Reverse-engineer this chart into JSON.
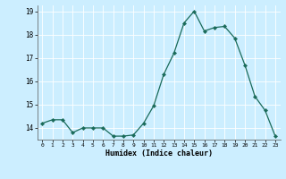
{
  "x": [
    0,
    1,
    2,
    3,
    4,
    5,
    6,
    7,
    8,
    9,
    10,
    11,
    12,
    13,
    14,
    15,
    16,
    17,
    18,
    19,
    20,
    21,
    22,
    23
  ],
  "y": [
    14.2,
    14.35,
    14.35,
    13.8,
    14.0,
    14.0,
    14.0,
    13.65,
    13.65,
    13.7,
    14.2,
    14.95,
    16.3,
    17.2,
    18.5,
    19.0,
    18.15,
    18.3,
    18.35,
    17.85,
    16.7,
    15.35,
    14.75,
    13.65
  ],
  "ylim": [
    13.5,
    19.25
  ],
  "yticks": [
    14,
    15,
    16,
    17,
    18,
    19
  ],
  "xticks": [
    0,
    1,
    2,
    3,
    4,
    5,
    6,
    7,
    8,
    9,
    10,
    11,
    12,
    13,
    14,
    15,
    16,
    17,
    18,
    19,
    20,
    21,
    22,
    23
  ],
  "xlabel": "Humidex (Indice chaleur)",
  "line_color": "#1a6b5a",
  "marker": "D",
  "marker_size": 2.2,
  "bg_color": "#cceeff",
  "grid_color": "#ffffff",
  "title": ""
}
